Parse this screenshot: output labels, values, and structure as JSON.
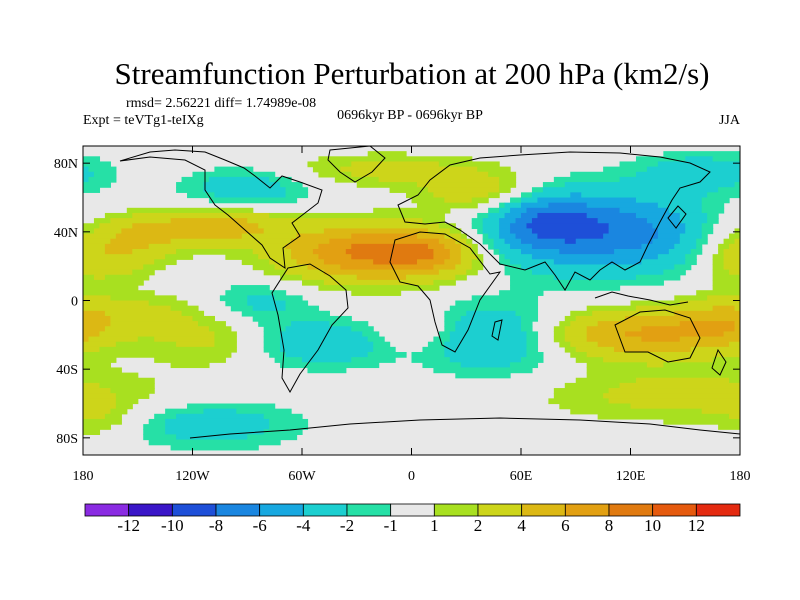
{
  "chart_data": {
    "type": "heatmap",
    "title": "Streamfunction Perturbation at 200 hPa (km2/s)",
    "stats_line": "rmsd= 2.56221 diff= 1.74989e-08",
    "experiment": "Expt = teVTg1-teIXg",
    "period": "0696kyr BP - 0696kyr BP",
    "season": "JJA",
    "xlim": [
      -180,
      180
    ],
    "ylim": [
      -90,
      90
    ],
    "x_ticks": [
      {
        "value": -180,
        "label": "180"
      },
      {
        "value": -120,
        "label": "120W"
      },
      {
        "value": -60,
        "label": "60W"
      },
      {
        "value": 0,
        "label": "0"
      },
      {
        "value": 60,
        "label": "60E"
      },
      {
        "value": 120,
        "label": "120E"
      },
      {
        "value": 180,
        "label": "180"
      }
    ],
    "y_ticks": [
      {
        "value": 80,
        "label": "80N"
      },
      {
        "value": 40,
        "label": "40N"
      },
      {
        "value": 0,
        "label": "0"
      },
      {
        "value": -40,
        "label": "40S"
      },
      {
        "value": -80,
        "label": "80S"
      }
    ],
    "colorbar": {
      "colors": [
        "#8a2be2",
        "#3a16c8",
        "#1e4fd8",
        "#1a86e0",
        "#17a8e0",
        "#1ccfd0",
        "#26e0a6",
        "#e8e8e8",
        "#a8e020",
        "#cdd51a",
        "#dcb814",
        "#e2a012",
        "#e07a10",
        "#e55a0e",
        "#e42a10"
      ],
      "labels": [
        "-12",
        "-10",
        "-8",
        "-6",
        "-4",
        "-2",
        "-1",
        "1",
        "2",
        "4",
        "6",
        "8",
        "10",
        "12"
      ]
    },
    "anomaly_centers": [
      {
        "lon": -145,
        "lat": 40,
        "amp": 4.2,
        "rlon": 22,
        "rlat": 9
      },
      {
        "lon": -100,
        "lat": 44,
        "amp": 4.5,
        "rlon": 22,
        "rlat": 8
      },
      {
        "lon": -165,
        "lat": 25,
        "amp": 3.5,
        "rlon": 18,
        "rlat": 10
      },
      {
        "lon": -28,
        "lat": 28,
        "amp": 8.0,
        "rlon": 32,
        "rlat": 12
      },
      {
        "lon": 12,
        "lat": 28,
        "amp": 5.0,
        "rlon": 20,
        "rlat": 10
      },
      {
        "lon": 40,
        "lat": 62,
        "amp": 4.0,
        "rlon": 24,
        "rlat": 9
      },
      {
        "lon": -15,
        "lat": 76,
        "amp": 2.6,
        "rlon": 40,
        "rlat": 7
      },
      {
        "lon": -90,
        "lat": 65,
        "amp": -3.5,
        "rlon": 25,
        "rlat": 9
      },
      {
        "lon": 105,
        "lat": 40,
        "amp": -7.5,
        "rlon": 45,
        "rlat": 17
      },
      {
        "lon": 70,
        "lat": 48,
        "amp": -4.0,
        "rlon": 20,
        "rlat": 12
      },
      {
        "lon": 160,
        "lat": 75,
        "amp": -3.0,
        "rlon": 25,
        "rlat": 8
      },
      {
        "lon": 170,
        "lat": 30,
        "amp": 2.2,
        "rlon": 14,
        "rlat": 16
      },
      {
        "lon": -150,
        "lat": -8,
        "amp": 2.4,
        "rlon": 45,
        "rlat": 9
      },
      {
        "lon": -85,
        "lat": -2,
        "amp": -3.0,
        "rlon": 22,
        "rlat": 9
      },
      {
        "lon": -50,
        "lat": -25,
        "amp": -3.8,
        "rlon": 28,
        "rlat": 10
      },
      {
        "lon": -110,
        "lat": -25,
        "amp": 2.2,
        "rlon": 25,
        "rlat": 10
      },
      {
        "lon": 45,
        "lat": -22,
        "amp": -5.0,
        "rlon": 28,
        "rlat": 14
      },
      {
        "lon": 5,
        "lat": -18,
        "amp": 2.2,
        "rlon": 18,
        "rlat": 9
      },
      {
        "lon": 120,
        "lat": -20,
        "amp": 6.0,
        "rlon": 40,
        "rlat": 10
      },
      {
        "lon": 170,
        "lat": -15,
        "amp": 2.8,
        "rlon": 20,
        "rlat": 10
      },
      {
        "lon": 150,
        "lat": -55,
        "amp": 2.8,
        "rlon": 55,
        "rlat": 11
      },
      {
        "lon": -110,
        "lat": -72,
        "amp": -3.2,
        "rlon": 35,
        "rlat": 10
      },
      {
        "lon": -170,
        "lat": -70,
        "amp": 1.8,
        "rlon": 15,
        "rlat": 8
      }
    ]
  }
}
